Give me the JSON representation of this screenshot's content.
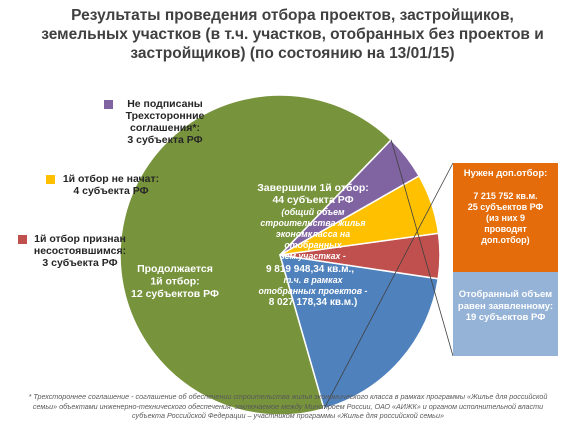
{
  "title": "Результаты   проведения отбора проектов, застройщиков, земельных участков (в т.ч. участков, отобранных без проектов и застройщиков) (по состоянию на 13/01/15)",
  "colors": {
    "completed": "#77933C",
    "continuing": "#4F81BD",
    "not_started": "#FFC000",
    "failed": "#C0504D",
    "not_signed": "#8064A2",
    "extra_selection": "#E46C0A",
    "equal_declared": "#95B3D7"
  },
  "chart_data": {
    "type": "pie",
    "unit": "субъекта РФ",
    "slices": [
      {
        "key": "completed",
        "value": 44,
        "label_lines": [
          "Завершили 1й отбор:",
          "44 субъекта РФ"
        ],
        "detail_lines": [
          "(общий объем",
          "строительства жилья",
          "экономкласса  на",
          "отобранных",
          "зем.участках  -"
        ],
        "value_lines": [
          "9 819 948,34 кв.м.,",
          "в"
        ],
        "sub_lines": [
          "т.ч. в рамках",
          "отобранных проектов  -"
        ],
        "sub_value_lines": [
          "8 027 178,34 кв.м.)"
        ]
      },
      {
        "key": "continuing",
        "value": 12,
        "label_lines": [
          "Продолжается",
          "1й  отбор:",
          "12 субъектов РФ"
        ]
      },
      {
        "key": "failed",
        "value": 3,
        "label_lines": [
          "1й отбор признан",
          "несостоявшимся:",
          "3 субъекта РФ"
        ]
      },
      {
        "key": "not_started",
        "value": 4,
        "label_lines": [
          "1й отбор не начат:",
          "4 субъекта РФ"
        ]
      },
      {
        "key": "not_signed",
        "value": 3,
        "label_lines": [
          "Не подписаны",
          "Трехсторонние",
          "соглашения*:",
          "3 субъекта РФ"
        ]
      }
    ],
    "breakdown": {
      "of": "completed",
      "items": [
        {
          "key": "extra_selection",
          "value": 25,
          "title": "Нужен доп.отбор:",
          "lines": [
            "7 215 752 кв.м.",
            "25 субъектов РФ",
            "(из них 9",
            "проводят",
            "доп.отбор)"
          ]
        },
        {
          "key": "equal_declared",
          "value": 19,
          "lines": [
            "Отобранный объем",
            "равен заявленному:",
            "19 субъектов РФ"
          ]
        }
      ]
    }
  },
  "footnote": "* Трехстороннее соглашение - соглашение об обеспечении строительства жилья экономического класса в рамках программы «Жилье для российской семьи» объектами инженерно-технического обеспечения, заключаемое между Минстроем России, ОАО «АИЖК» и органом исполнительной власти субъекта Российской Федерации – участником программы «Жилье для российской семьи»"
}
